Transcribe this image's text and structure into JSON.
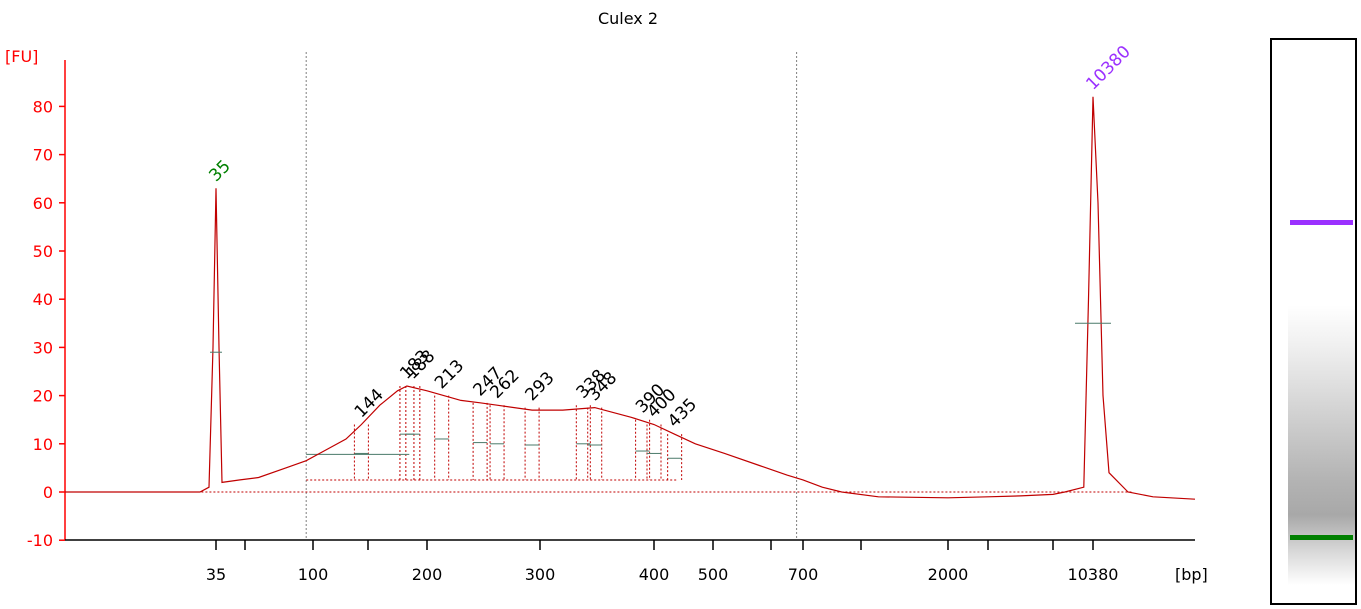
{
  "chart_data": {
    "type": "line",
    "title": "Culex 2",
    "ylabel": "[FU]",
    "xlabel": "[bp]",
    "ylim": [
      -10,
      90
    ],
    "y_ticks": [
      -10,
      0,
      10,
      20,
      30,
      40,
      50,
      60,
      70,
      80
    ],
    "x_tick_labels": [
      "35",
      "100",
      "200",
      "300",
      "400",
      "500",
      "700",
      "2000",
      "10380"
    ],
    "x_ladder_bp": [
      35,
      50,
      100,
      150,
      200,
      300,
      400,
      500,
      600,
      700,
      1000,
      2000,
      3000,
      7000,
      10380
    ],
    "grid": false,
    "series": [
      {
        "color": "#c00000",
        "x": [
          35,
          100,
          144,
          183,
          200,
          247,
          300,
          348,
          400,
          500,
          700,
          1000,
          2000,
          7000,
          10380
        ],
        "y": [
          63,
          7,
          14,
          22,
          21,
          18,
          17,
          17,
          14,
          9,
          2.5,
          0,
          -1,
          -1,
          82
        ]
      }
    ],
    "peak_labels": [
      {
        "label": "35",
        "bp": 35,
        "fu": 63,
        "color": "#008000"
      },
      {
        "label": "10380",
        "bp": 10380,
        "fu": 82,
        "color": "#9b30ff"
      },
      {
        "label": "144",
        "bp": 144,
        "fu": 14,
        "color": "#000000"
      },
      {
        "label": "183",
        "bp": 183,
        "fu": 22,
        "color": "#000000"
      },
      {
        "label": "188",
        "bp": 188,
        "fu": 22,
        "color": "#000000"
      },
      {
        "label": "213",
        "bp": 213,
        "fu": 20,
        "color": "#000000"
      },
      {
        "label": "247",
        "bp": 247,
        "fu": 18.5,
        "color": "#000000"
      },
      {
        "label": "262",
        "bp": 262,
        "fu": 18,
        "color": "#000000"
      },
      {
        "label": "293",
        "bp": 293,
        "fu": 17.5,
        "color": "#000000"
      },
      {
        "label": "338",
        "bp": 338,
        "fu": 18,
        "color": "#000000"
      },
      {
        "label": "348",
        "bp": 348,
        "fu": 17.5,
        "color": "#000000"
      },
      {
        "label": "390",
        "bp": 390,
        "fu": 15,
        "color": "#000000"
      },
      {
        "label": "400",
        "bp": 400,
        "fu": 14,
        "color": "#000000"
      },
      {
        "label": "435",
        "bp": 435,
        "fu": 12,
        "color": "#000000"
      }
    ],
    "region_markers_bp": [
      95,
      680
    ],
    "colors": {
      "axis": "#ff0000",
      "trace": "#c00000",
      "marker_line": "#808080",
      "lower_marker": "#008000",
      "upper_marker": "#9b30ff"
    }
  },
  "gel": {
    "bands": [
      {
        "name": "upper-marker",
        "color": "#9b30ff",
        "fu": 82
      },
      {
        "name": "lower-marker",
        "color": "#008000",
        "fu": 63
      }
    ]
  }
}
